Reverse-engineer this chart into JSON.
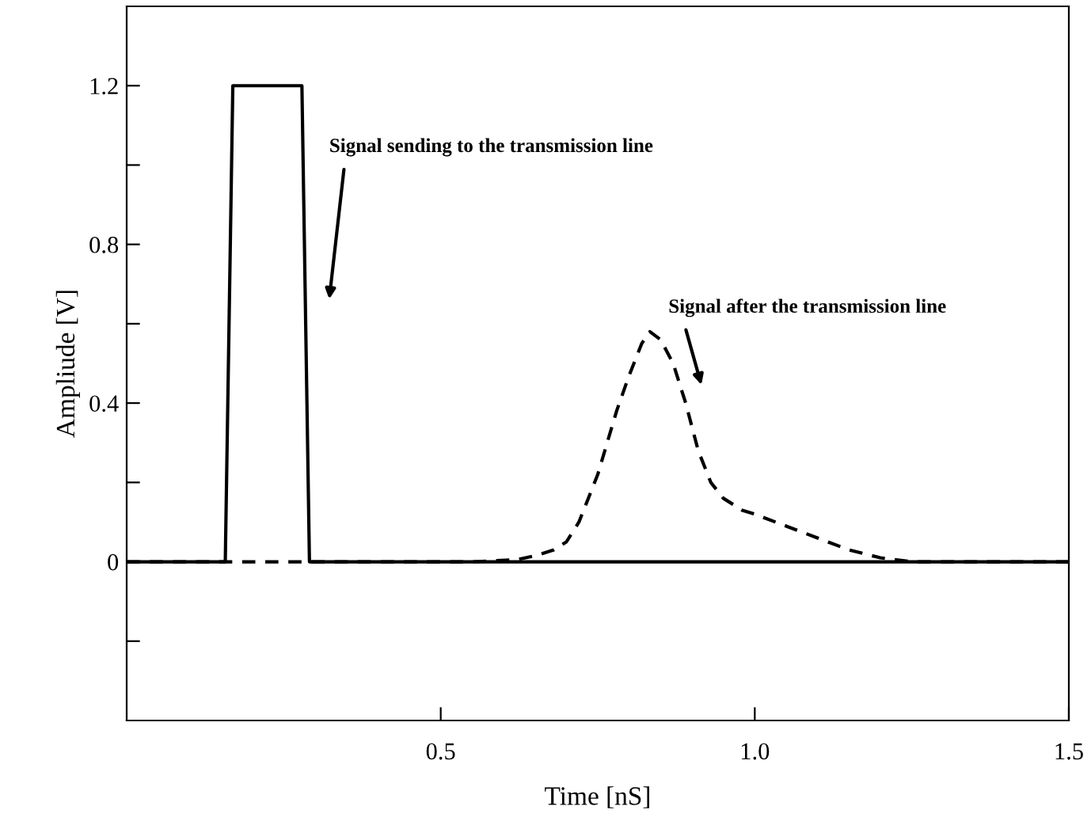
{
  "chart_data": {
    "type": "line",
    "xlabel": "Time [nS]",
    "ylabel": "Ampliude [V]",
    "xlim": [
      0,
      1.5
    ],
    "ylim": [
      -0.4,
      1.4
    ],
    "xticks": [
      {
        "value": 0.5,
        "label": "0.5"
      },
      {
        "value": 1.0,
        "label": "1.0"
      },
      {
        "value": 1.5,
        "label": "1.5"
      }
    ],
    "yticks": [
      {
        "value": -0.2,
        "label": null
      },
      {
        "value": 0,
        "label": "0"
      },
      {
        "value": 0.2,
        "label": null
      },
      {
        "value": 0.4,
        "label": "0.4"
      },
      {
        "value": 0.6,
        "label": null
      },
      {
        "value": 0.8,
        "label": "0.8"
      },
      {
        "value": 1.0,
        "label": null
      },
      {
        "value": 1.2,
        "label": "1.2"
      }
    ],
    "grid": false,
    "legend": false,
    "marker": "none",
    "series": [
      {
        "color": "#000000",
        "line_style": "solid",
        "x": [
          0,
          0.157,
          0.169,
          0.279,
          0.291,
          1.5
        ],
        "values": [
          0,
          0,
          1.2,
          1.2,
          0,
          0
        ]
      },
      {
        "color": "#000000",
        "line_style": "dashed",
        "x": [
          0,
          0.55,
          0.62,
          0.65,
          0.68,
          0.7,
          0.72,
          0.75,
          0.78,
          0.8,
          0.82,
          0.833,
          0.85,
          0.87,
          0.89,
          0.91,
          0.93,
          0.95,
          0.98,
          1.0,
          1.05,
          1.1,
          1.15,
          1.2,
          1.25,
          1.5
        ],
        "values": [
          0,
          0,
          0.005,
          0.015,
          0.03,
          0.05,
          0.1,
          0.22,
          0.38,
          0.47,
          0.55,
          0.58,
          0.56,
          0.5,
          0.4,
          0.28,
          0.2,
          0.16,
          0.13,
          0.12,
          0.09,
          0.06,
          0.03,
          0.01,
          0,
          0
        ]
      }
    ],
    "annotations": [
      "Signal sending to the transmission line",
      "Signal after the transmission line"
    ]
  }
}
